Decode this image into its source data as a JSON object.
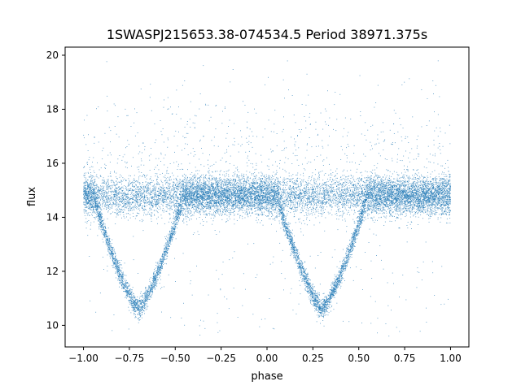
{
  "chart_data": {
    "type": "scatter",
    "title": "1SWASPJ215653.38-074534.5 Period 38971.375s",
    "xlabel": "phase",
    "ylabel": "flux",
    "xlim": [
      -1.1,
      1.1
    ],
    "ylim": [
      9.2,
      20.3
    ],
    "x_ticks": [
      -1.0,
      -0.75,
      -0.5,
      -0.25,
      0.0,
      0.25,
      0.5,
      0.75,
      1.0
    ],
    "x_tick_labels": [
      "−1.00",
      "−0.75",
      "−0.50",
      "−0.25",
      "0.00",
      "0.25",
      "0.50",
      "0.75",
      "1.00"
    ],
    "y_ticks": [
      10,
      12,
      14,
      16,
      18,
      20
    ],
    "y_tick_labels": [
      "10",
      "12",
      "14",
      "16",
      "18",
      "20"
    ],
    "grid": false,
    "legend": "none",
    "point_color": "#1f77b4",
    "series": [
      {
        "x_range": [
          -1.0,
          1.0
        ],
        "baseline_flux": 14.8,
        "baseline_scatter": 0.35,
        "outlier_range": [
          9.6,
          19.8
        ],
        "eclipses": [
          {
            "phase_min": -0.7,
            "flux_min": 10.6,
            "phase_start": -0.95,
            "phase_end": -0.45
          },
          {
            "phase_min": 0.3,
            "flux_min": 10.6,
            "phase_start": 0.05,
            "phase_end": 0.55
          }
        ]
      }
    ]
  }
}
